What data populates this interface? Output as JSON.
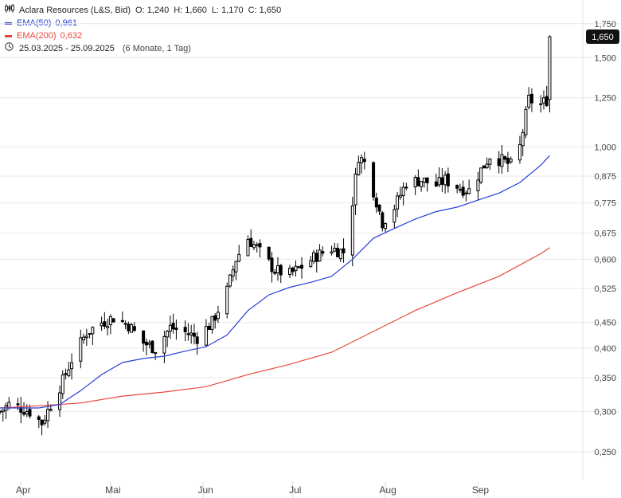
{
  "legend": {
    "instrument": "Aclara Resources (L&S, Bid)",
    "open_label": "O:",
    "open": "1,240",
    "high_label": "H:",
    "high": "1,660",
    "low_label": "L:",
    "low": "1,170",
    "close_label": "C:",
    "close": "1,650",
    "ema50_label": "EMA(50)",
    "ema50_value": "0,961",
    "ema200_label": "EMA(200)",
    "ema200_value": "0,632",
    "date_range": "25.03.2025 - 25.09.2025",
    "period": "(6 Monate, 1 Tag)"
  },
  "colors": {
    "candle": "#000000",
    "ema50": "#2a3fd6",
    "ema200": "#e8473e",
    "grid": "#e9e9e9",
    "price_tag_bg": "#111111",
    "price_tag_text": "#ffffff"
  },
  "chart_data": {
    "type": "candlestick",
    "y_scale": "log",
    "ylim": [
      0.225,
      1.8
    ],
    "y_ticks": [
      {
        "v": 0.25,
        "label": "0,250"
      },
      {
        "v": 0.3,
        "label": "0,300"
      },
      {
        "v": 0.35,
        "label": "0,350"
      },
      {
        "v": 0.4,
        "label": "0,400"
      },
      {
        "v": 0.45,
        "label": "0,450"
      },
      {
        "v": 0.525,
        "label": "0,525"
      },
      {
        "v": 0.6,
        "label": "0,600"
      },
      {
        "v": 0.675,
        "label": "0,675"
      },
      {
        "v": 0.775,
        "label": "0,775"
      },
      {
        "v": 0.875,
        "label": "0,875"
      },
      {
        "v": 1.0,
        "label": "1,000"
      },
      {
        "v": 1.25,
        "label": "1,250"
      },
      {
        "v": 1.5,
        "label": "1,500"
      },
      {
        "v": 1.75,
        "label": "1,750"
      }
    ],
    "x_start": "2025-03-25",
    "x_end": "2025-10-05",
    "x_ticks": [
      {
        "date": "2025-04-01",
        "label": "Apr"
      },
      {
        "date": "2025-05-01",
        "label": "Mai"
      },
      {
        "date": "2025-06-01",
        "label": "Jun"
      },
      {
        "date": "2025-07-01",
        "label": "Jul"
      },
      {
        "date": "2025-08-01",
        "label": "Aug"
      },
      {
        "date": "2025-09-01",
        "label": "Sep"
      }
    ],
    "last_price": {
      "value": 1.65,
      "label": "1,650"
    },
    "close_path": [
      [
        "2025-03-25",
        0.3
      ],
      [
        "2025-03-28",
        0.31
      ],
      [
        "2025-04-01",
        0.305
      ],
      [
        "2025-04-04",
        0.3
      ],
      [
        "2025-04-08",
        0.285
      ],
      [
        "2025-04-11",
        0.31
      ],
      [
        "2025-04-15",
        0.345
      ],
      [
        "2025-04-18",
        0.38
      ],
      [
        "2025-04-23",
        0.43
      ],
      [
        "2025-04-28",
        0.45
      ],
      [
        "2025-05-02",
        0.46
      ],
      [
        "2025-05-07",
        0.445
      ],
      [
        "2025-05-12",
        0.41
      ],
      [
        "2025-05-16",
        0.4
      ],
      [
        "2025-05-21",
        0.44
      ],
      [
        "2025-05-26",
        0.43
      ],
      [
        "2025-05-30",
        0.42
      ],
      [
        "2025-06-04",
        0.45
      ],
      [
        "2025-06-09",
        0.52
      ],
      [
        "2025-06-12",
        0.6
      ],
      [
        "2025-06-16",
        0.66
      ],
      [
        "2025-06-20",
        0.62
      ],
      [
        "2025-06-25",
        0.57
      ],
      [
        "2025-06-30",
        0.56
      ],
      [
        "2025-07-04",
        0.58
      ],
      [
        "2025-07-09",
        0.61
      ],
      [
        "2025-07-14",
        0.63
      ],
      [
        "2025-07-18",
        0.62
      ],
      [
        "2025-07-21",
        0.78
      ],
      [
        "2025-07-23",
        0.96
      ],
      [
        "2025-07-25",
        0.93
      ],
      [
        "2025-07-28",
        0.82
      ],
      [
        "2025-07-31",
        0.71
      ],
      [
        "2025-08-04",
        0.76
      ],
      [
        "2025-08-08",
        0.85
      ],
      [
        "2025-08-13",
        0.86
      ],
      [
        "2025-08-18",
        0.84
      ],
      [
        "2025-08-21",
        0.86
      ],
      [
        "2025-08-26",
        0.83
      ],
      [
        "2025-08-29",
        0.82
      ],
      [
        "2025-09-02",
        0.9
      ],
      [
        "2025-09-05",
        0.96
      ],
      [
        "2025-09-09",
        0.94
      ],
      [
        "2025-09-12",
        0.92
      ],
      [
        "2025-09-15",
        1.0
      ],
      [
        "2025-09-18",
        1.24
      ],
      [
        "2025-09-22",
        1.21
      ],
      [
        "2025-09-24",
        1.24
      ],
      [
        "2025-09-25",
        1.65
      ]
    ],
    "series": [
      {
        "name": "EMA(50)",
        "values": [
          [
            "2025-03-25",
            0.305
          ],
          [
            "2025-04-07",
            0.305
          ],
          [
            "2025-04-14",
            0.31
          ],
          [
            "2025-04-21",
            0.33
          ],
          [
            "2025-04-28",
            0.355
          ],
          [
            "2025-05-05",
            0.375
          ],
          [
            "2025-05-12",
            0.382
          ],
          [
            "2025-05-19",
            0.386
          ],
          [
            "2025-05-26",
            0.395
          ],
          [
            "2025-06-02",
            0.403
          ],
          [
            "2025-06-09",
            0.425
          ],
          [
            "2025-06-16",
            0.475
          ],
          [
            "2025-06-23",
            0.51
          ],
          [
            "2025-06-30",
            0.528
          ],
          [
            "2025-07-07",
            0.54
          ],
          [
            "2025-07-14",
            0.555
          ],
          [
            "2025-07-21",
            0.6
          ],
          [
            "2025-07-28",
            0.66
          ],
          [
            "2025-08-04",
            0.69
          ],
          [
            "2025-08-11",
            0.72
          ],
          [
            "2025-08-18",
            0.745
          ],
          [
            "2025-08-25",
            0.76
          ],
          [
            "2025-09-01",
            0.785
          ],
          [
            "2025-09-08",
            0.81
          ],
          [
            "2025-09-15",
            0.85
          ],
          [
            "2025-09-22",
            0.92
          ],
          [
            "2025-09-25",
            0.961
          ]
        ]
      },
      {
        "name": "EMA(200)",
        "values": [
          [
            "2025-03-25",
            0.305
          ],
          [
            "2025-04-07",
            0.308
          ],
          [
            "2025-04-21",
            0.312
          ],
          [
            "2025-05-05",
            0.322
          ],
          [
            "2025-05-19",
            0.328
          ],
          [
            "2025-06-02",
            0.336
          ],
          [
            "2025-06-16",
            0.355
          ],
          [
            "2025-06-30",
            0.372
          ],
          [
            "2025-07-14",
            0.393
          ],
          [
            "2025-07-28",
            0.432
          ],
          [
            "2025-08-11",
            0.475
          ],
          [
            "2025-08-25",
            0.515
          ],
          [
            "2025-09-08",
            0.555
          ],
          [
            "2025-09-22",
            0.615
          ],
          [
            "2025-09-25",
            0.632
          ]
        ]
      }
    ]
  }
}
